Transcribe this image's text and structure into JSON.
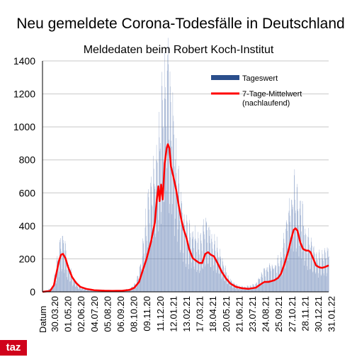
{
  "brand": {
    "logo_text": "taz",
    "logo_color": "#d0021b"
  },
  "chart_data": {
    "type": "bar",
    "title": "Neu gemeldete Corona-Todesfälle in Deutschland",
    "subtitle": "Meldedaten beim Robert Koch-Institut",
    "xlabel": "Datum",
    "ylabel": "",
    "ylim": [
      0,
      1400
    ],
    "yticks": [
      0,
      200,
      400,
      600,
      800,
      1000,
      1200,
      1400
    ],
    "grid": true,
    "legend_position": "top-right",
    "x_start": "2020-03-30",
    "x_end": "2022-02-25",
    "x_tick_labels": [
      "30.03.20",
      "01.05.20",
      "02.06.20",
      "04.07.20",
      "05.08.20",
      "06.09.20",
      "08.10.20",
      "09.11.20",
      "11.12.20",
      "12.01.21",
      "13.02.21",
      "17.03.21",
      "18.04.21",
      "20.05.21",
      "21.06.21",
      "23.07.21",
      "24.08.21",
      "25.09.21",
      "27.10.21",
      "28.11.21",
      "30.12.21",
      "31.01.22"
    ],
    "series": [
      {
        "name": "Tageswert",
        "type": "bar",
        "color": "#2b4f8c",
        "description_points": [
          [
            "2020-03-01",
            0
          ],
          [
            "2020-03-25",
            20
          ],
          [
            "2020-04-05",
            120
          ],
          [
            "2020-04-15",
            260
          ],
          [
            "2020-04-22",
            300
          ],
          [
            "2020-05-01",
            170
          ],
          [
            "2020-05-15",
            80
          ],
          [
            "2020-06-01",
            30
          ],
          [
            "2020-06-20",
            15
          ],
          [
            "2020-07-15",
            8
          ],
          [
            "2020-08-15",
            6
          ],
          [
            "2020-09-15",
            8
          ],
          [
            "2020-10-08",
            15
          ],
          [
            "2020-10-25",
            50
          ],
          [
            "2020-11-09",
            200
          ],
          [
            "2020-11-25",
            480
          ],
          [
            "2020-12-10",
            620
          ],
          [
            "2020-12-25",
            900
          ],
          [
            "2021-01-05",
            1100
          ],
          [
            "2021-01-12",
            1240
          ],
          [
            "2021-01-20",
            950
          ],
          [
            "2021-02-01",
            750
          ],
          [
            "2021-02-13",
            500
          ],
          [
            "2021-02-25",
            350
          ],
          [
            "2021-03-17",
            280
          ],
          [
            "2021-04-05",
            250
          ],
          [
            "2021-04-18",
            340
          ],
          [
            "2021-05-01",
            310
          ],
          [
            "2021-05-20",
            220
          ],
          [
            "2021-06-05",
            120
          ],
          [
            "2021-06-21",
            60
          ],
          [
            "2021-07-10",
            30
          ],
          [
            "2021-07-23",
            25
          ],
          [
            "2021-08-10",
            30
          ],
          [
            "2021-08-24",
            40
          ],
          [
            "2021-09-10",
            100
          ],
          [
            "2021-09-25",
            130
          ],
          [
            "2021-10-15",
            140
          ],
          [
            "2021-10-27",
            180
          ],
          [
            "2021-11-10",
            330
          ],
          [
            "2021-11-20",
            480
          ],
          [
            "2021-11-28",
            540
          ],
          [
            "2021-12-10",
            460
          ],
          [
            "2021-12-20",
            390
          ],
          [
            "2021-12-30",
            280
          ],
          [
            "2022-01-10",
            250
          ],
          [
            "2022-01-31",
            180
          ],
          [
            "2022-02-20",
            210
          ]
        ]
      },
      {
        "name": "7-Tage-Mittelwert (nachlaufend)",
        "name_lines": [
          "7-Tage-Mittelwert",
          "(nachlaufend)"
        ],
        "type": "line",
        "color": "#ff0000",
        "points": [
          [
            "2020-03-01",
            0
          ],
          [
            "2020-03-20",
            5
          ],
          [
            "2020-03-30",
            40
          ],
          [
            "2020-04-05",
            110
          ],
          [
            "2020-04-12",
            190
          ],
          [
            "2020-04-17",
            225
          ],
          [
            "2020-04-22",
            230
          ],
          [
            "2020-04-28",
            205
          ],
          [
            "2020-05-05",
            150
          ],
          [
            "2020-05-15",
            90
          ],
          [
            "2020-05-25",
            55
          ],
          [
            "2020-06-05",
            30
          ],
          [
            "2020-06-20",
            18
          ],
          [
            "2020-07-10",
            10
          ],
          [
            "2020-08-05",
            7
          ],
          [
            "2020-08-25",
            6
          ],
          [
            "2020-09-20",
            7
          ],
          [
            "2020-10-08",
            12
          ],
          [
            "2020-10-20",
            25
          ],
          [
            "2020-11-01",
            60
          ],
          [
            "2020-11-09",
            120
          ],
          [
            "2020-11-20",
            200
          ],
          [
            "2020-12-01",
            300
          ],
          [
            "2020-12-11",
            420
          ],
          [
            "2020-12-16",
            560
          ],
          [
            "2020-12-20",
            640
          ],
          [
            "2020-12-23",
            550
          ],
          [
            "2020-12-27",
            650
          ],
          [
            "2020-12-31",
            560
          ],
          [
            "2021-01-05",
            780
          ],
          [
            "2021-01-10",
            870
          ],
          [
            "2021-01-13",
            895
          ],
          [
            "2021-01-17",
            870
          ],
          [
            "2021-01-21",
            760
          ],
          [
            "2021-01-27",
            700
          ],
          [
            "2021-02-03",
            620
          ],
          [
            "2021-02-10",
            520
          ],
          [
            "2021-02-16",
            440
          ],
          [
            "2021-02-22",
            380
          ],
          [
            "2021-03-01",
            330
          ],
          [
            "2021-03-08",
            260
          ],
          [
            "2021-03-17",
            205
          ],
          [
            "2021-03-25",
            190
          ],
          [
            "2021-04-03",
            175
          ],
          [
            "2021-04-10",
            175
          ],
          [
            "2021-04-18",
            230
          ],
          [
            "2021-04-25",
            240
          ],
          [
            "2021-05-02",
            225
          ],
          [
            "2021-05-10",
            215
          ],
          [
            "2021-05-20",
            170
          ],
          [
            "2021-05-30",
            120
          ],
          [
            "2021-06-10",
            80
          ],
          [
            "2021-06-21",
            50
          ],
          [
            "2021-07-05",
            30
          ],
          [
            "2021-07-20",
            22
          ],
          [
            "2021-08-05",
            18
          ],
          [
            "2021-08-24",
            25
          ],
          [
            "2021-09-05",
            45
          ],
          [
            "2021-09-15",
            60
          ],
          [
            "2021-09-25",
            60
          ],
          [
            "2021-10-10",
            70
          ],
          [
            "2021-10-20",
            85
          ],
          [
            "2021-10-27",
            110
          ],
          [
            "2021-11-05",
            170
          ],
          [
            "2021-11-15",
            250
          ],
          [
            "2021-11-22",
            320
          ],
          [
            "2021-11-28",
            375
          ],
          [
            "2021-12-03",
            385
          ],
          [
            "2021-12-08",
            370
          ],
          [
            "2021-12-15",
            300
          ],
          [
            "2021-12-22",
            260
          ],
          [
            "2021-12-30",
            250
          ],
          [
            "2022-01-05",
            250
          ],
          [
            "2022-01-10",
            240
          ],
          [
            "2022-01-17",
            200
          ],
          [
            "2022-01-24",
            160
          ],
          [
            "2022-01-31",
            150
          ],
          [
            "2022-02-08",
            145
          ],
          [
            "2022-02-15",
            150
          ],
          [
            "2022-02-25",
            160
          ]
        ]
      }
    ]
  }
}
